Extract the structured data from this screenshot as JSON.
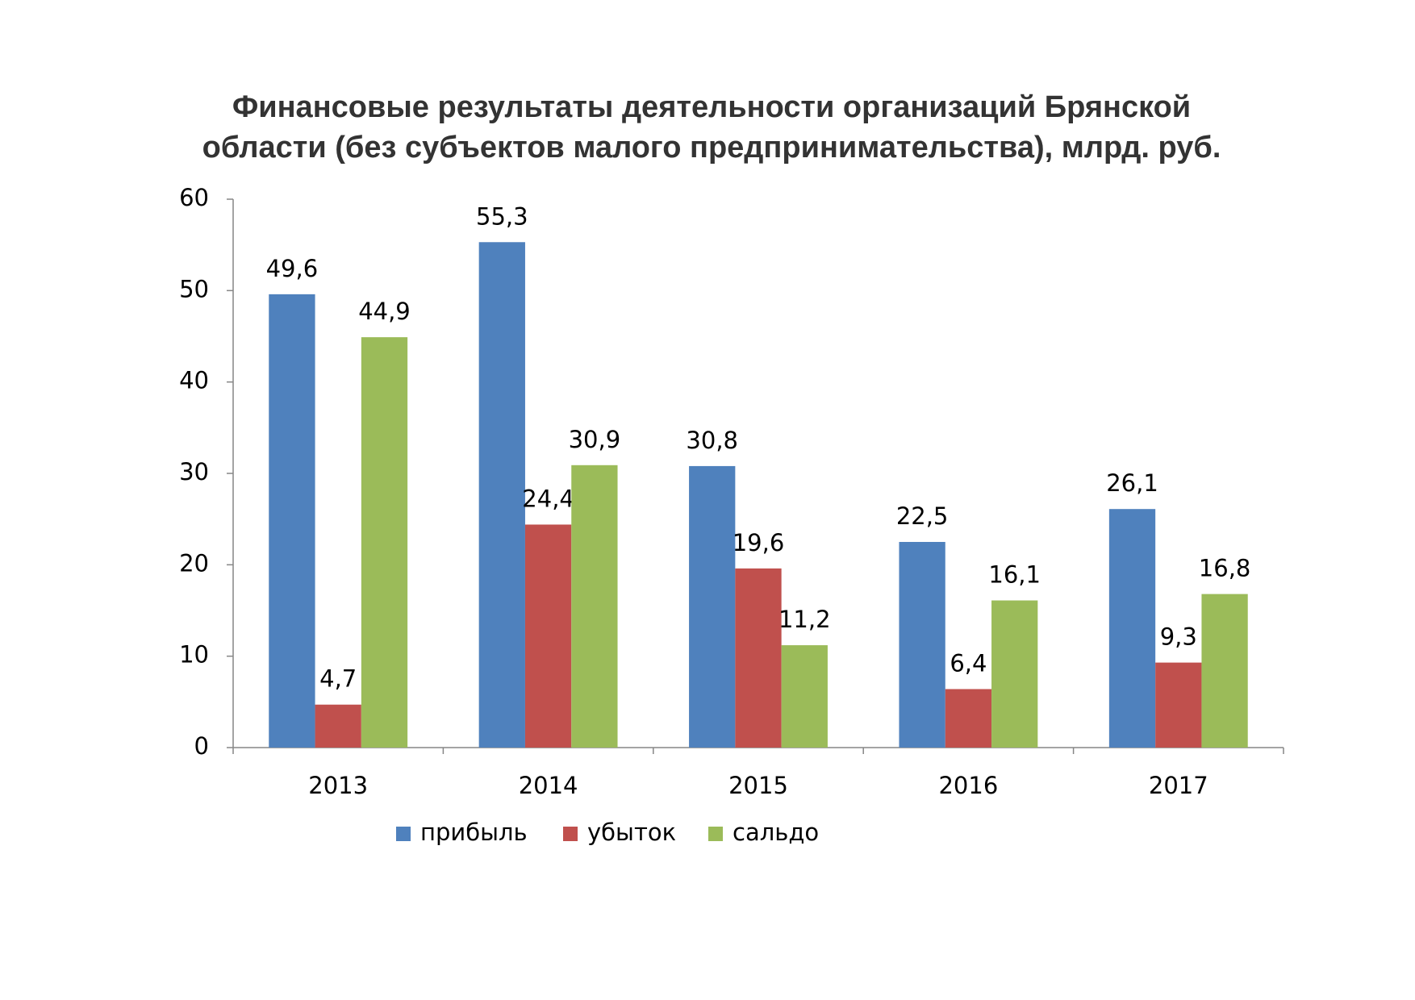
{
  "chart_data": {
    "type": "bar",
    "title": [
      "Финансовые результаты деятельности организаций Брянской",
      "области  (без субъектов малого предпринимательства), млрд. руб."
    ],
    "categories": [
      "2013",
      "2014",
      "2015",
      "2016",
      "2017"
    ],
    "series": [
      {
        "name": "прибыль",
        "color": "#4f81bd",
        "values": [
          49.6,
          55.3,
          30.8,
          22.5,
          26.1
        ],
        "value_labels": [
          "49,6",
          "55,3",
          "30,8",
          "22,5",
          "26,1"
        ]
      },
      {
        "name": "убыток",
        "color": "#c0504d",
        "values": [
          4.7,
          24.4,
          19.6,
          6.4,
          9.3
        ],
        "value_labels": [
          "4,7",
          "24,4",
          "19,6",
          "6,4",
          "9,3"
        ]
      },
      {
        "name": "сальдо",
        "color": "#9bbb59",
        "values": [
          44.9,
          30.9,
          11.2,
          16.1,
          16.8
        ],
        "value_labels": [
          "44,9",
          "30,9",
          "11,2",
          "16,1",
          "16,8"
        ]
      }
    ],
    "ylim": [
      0,
      60
    ],
    "yticks": [
      0,
      10,
      20,
      30,
      40,
      50,
      60
    ],
    "grid": false,
    "legend": "bottom"
  }
}
